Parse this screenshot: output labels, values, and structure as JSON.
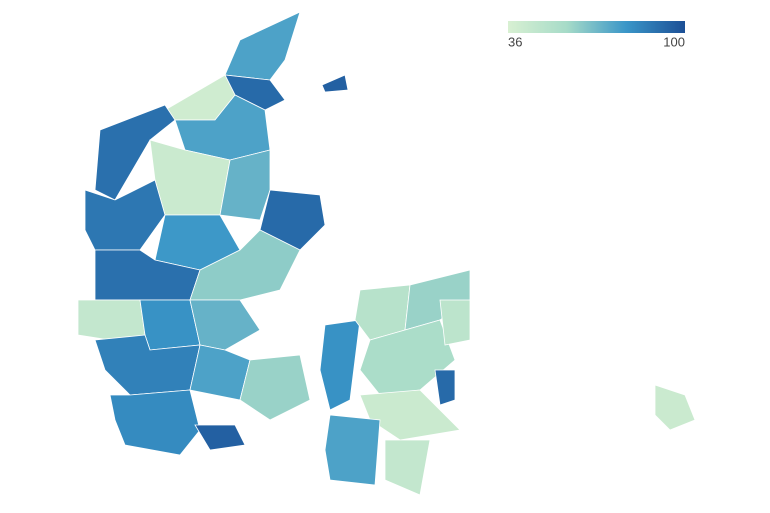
{
  "chart_data": {
    "type": "choropleth",
    "colorbar": {
      "min": 36,
      "max": 100
    },
    "colors": [
      "#d8f0d2",
      "#a6dbc8",
      "#3a96c8",
      "#1c4f96"
    ],
    "values": [
      75,
      92,
      40,
      90,
      75,
      42,
      70,
      92,
      88,
      78,
      90,
      45,
      62,
      80,
      70,
      85,
      82,
      75,
      60,
      80,
      50,
      60,
      55,
      92,
      42,
      75,
      45,
      42,
      95,
      48,
      95
    ]
  }
}
